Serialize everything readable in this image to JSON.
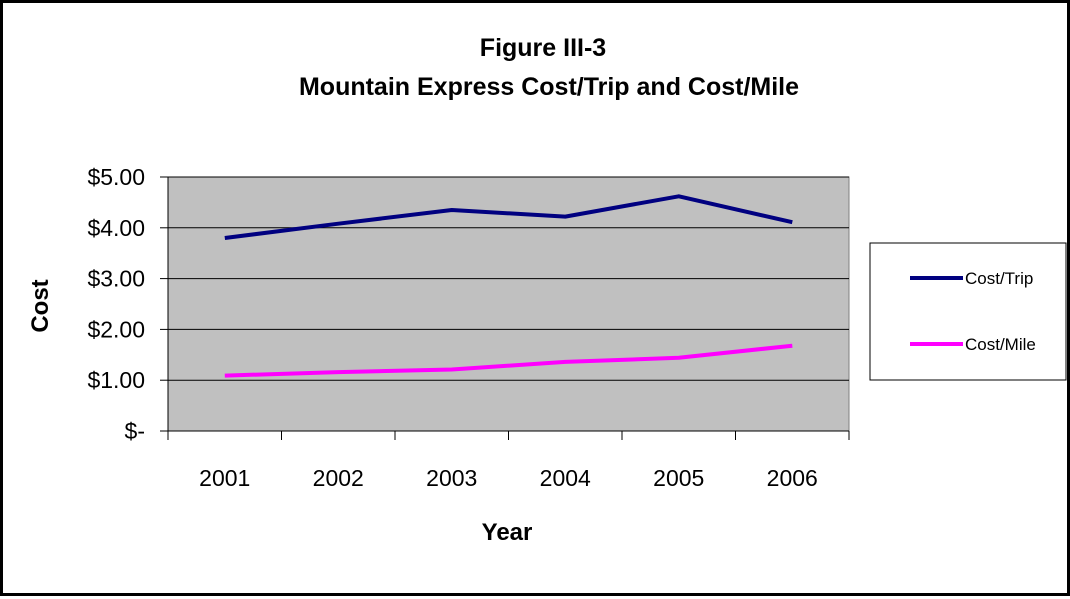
{
  "chart_data": {
    "type": "line",
    "title": "Figure III-3",
    "subtitle": "Mountain Express Cost/Trip and Cost/Mile",
    "xlabel": "Year",
    "ylabel": "Cost",
    "categories": [
      "2001",
      "2002",
      "2003",
      "2004",
      "2005",
      "2006"
    ],
    "ylim": [
      0,
      5
    ],
    "yticks": [
      0,
      1,
      2,
      3,
      4,
      5
    ],
    "ytick_labels": [
      "$-",
      "$1.00",
      "$2.00",
      "$3.00",
      "$4.00",
      "$5.00"
    ],
    "grid": true,
    "legend_position": "right",
    "plot_background": "#C0C0C0",
    "series": [
      {
        "name": "Cost/Trip",
        "color": "#000080",
        "values": [
          3.8,
          4.08,
          4.35,
          4.22,
          4.62,
          4.11
        ]
      },
      {
        "name": "Cost/Mile",
        "color": "#FF00FF",
        "values": [
          1.09,
          1.16,
          1.21,
          1.36,
          1.44,
          1.68
        ]
      }
    ]
  }
}
